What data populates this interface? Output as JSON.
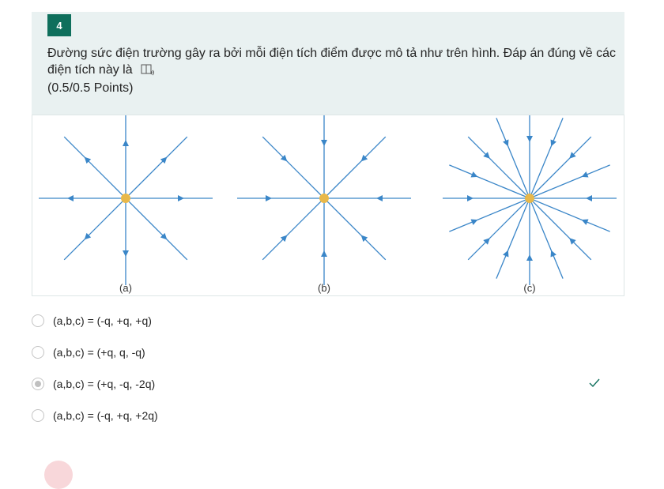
{
  "question": {
    "number": "4",
    "text": "Đường sức điện trường gây ra bởi mỗi điện tích điểm được mô tả như trên hình. Đáp án đúng về các điện tích này là",
    "points": "(0.5/0.5 Points)"
  },
  "figure": {
    "labels": [
      "(a)",
      "(b)",
      "(c)"
    ],
    "line_color": "#3a86c8",
    "charge_color": "#e8b84a"
  },
  "options": [
    {
      "label": "(a,b,c) = (-q, +q, +q)",
      "selected": false,
      "correct": false
    },
    {
      "label": "(a,b,c) = (+q, q, -q)",
      "selected": false,
      "correct": false
    },
    {
      "label": "(a,b,c) = (+q, -q, -2q)",
      "selected": true,
      "correct": true
    },
    {
      "label": "(a,b,c) = (-q, +q, +2q)",
      "selected": false,
      "correct": false
    }
  ]
}
